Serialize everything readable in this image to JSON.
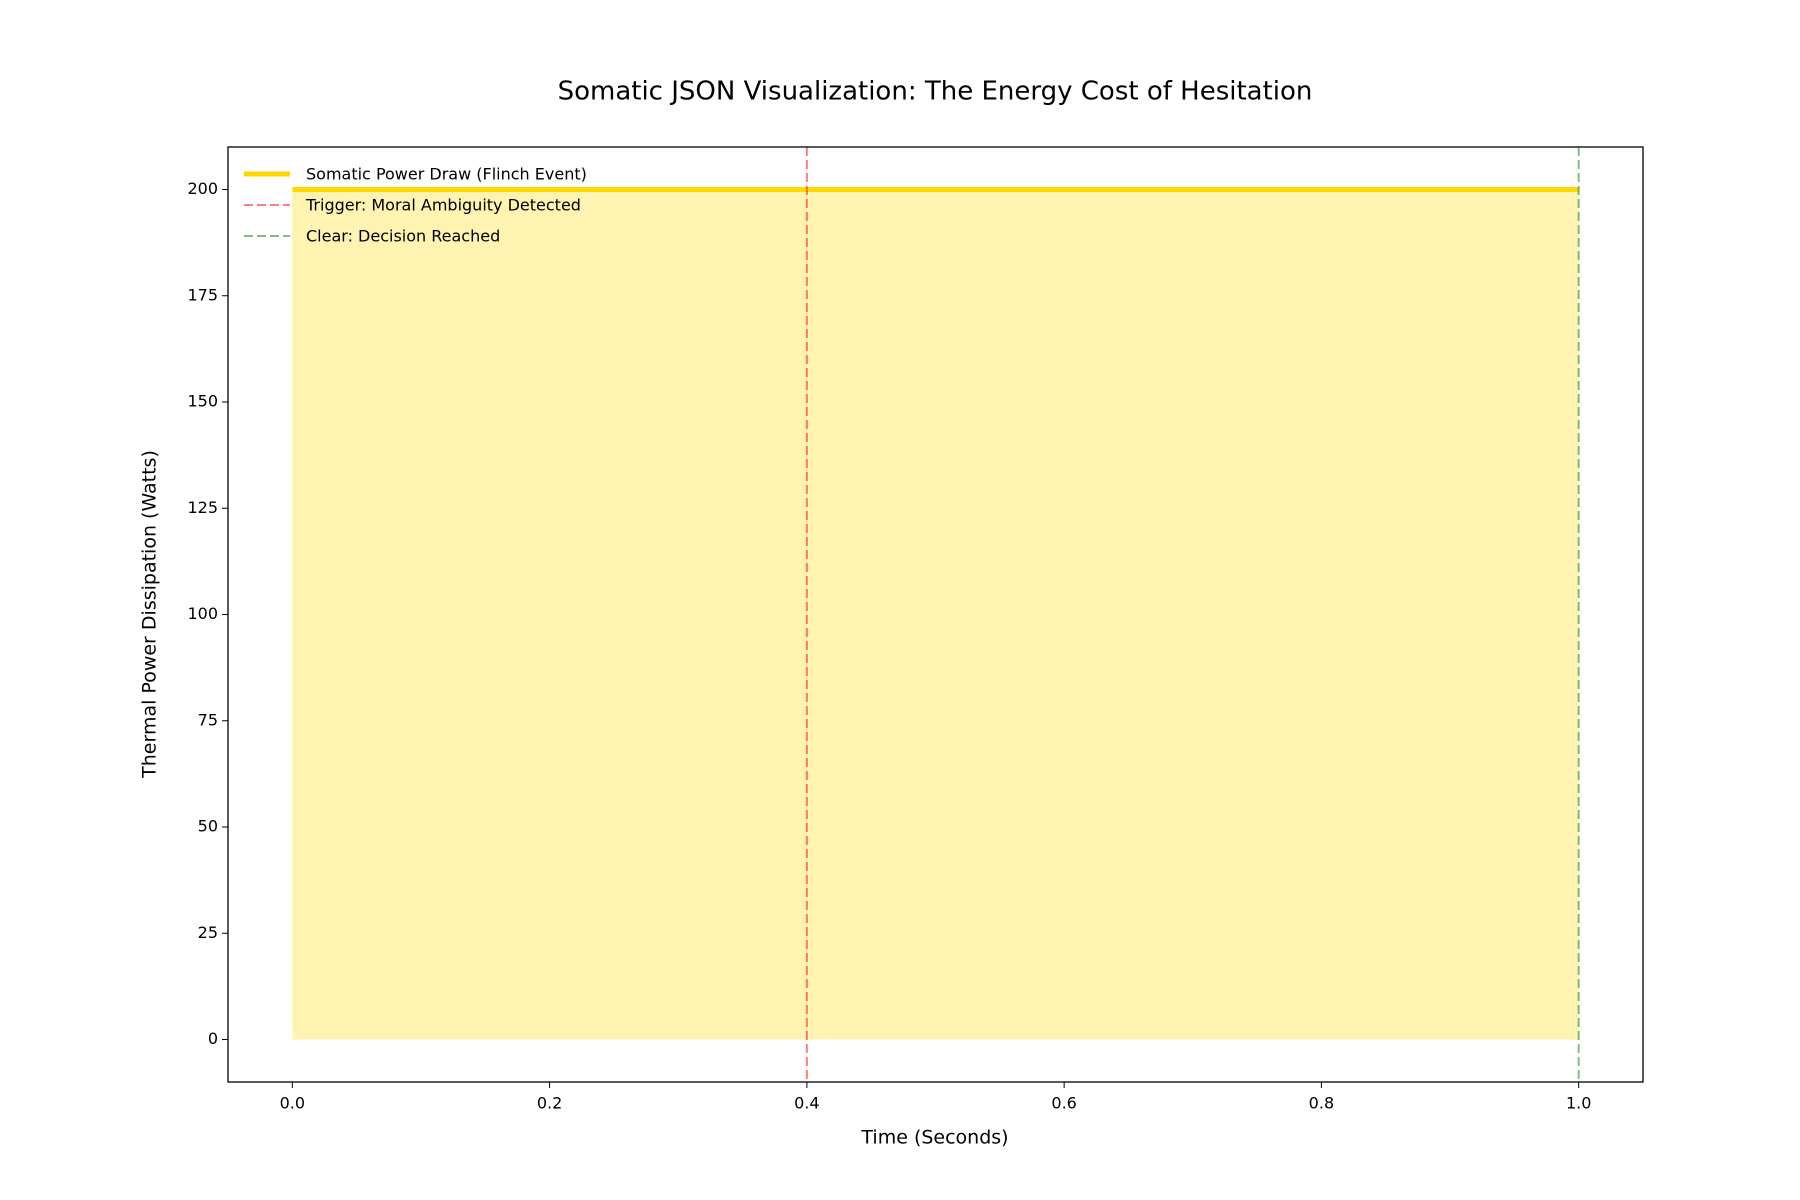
{
  "chart_data": {
    "type": "line",
    "title": "Somatic JSON Visualization: The Energy Cost of Hesitation",
    "xlabel": "Time (Seconds)",
    "ylabel": "Thermal Power Dissipation (Watts)",
    "x": [
      0,
      1
    ],
    "series": [
      {
        "name": "Somatic Power Draw (Flinch Event)",
        "color": "#ffd700",
        "values": [
          200,
          200
        ],
        "fill": true
      }
    ],
    "vlines": [
      {
        "name": "Trigger: Moral Ambiguity Detected",
        "color": "#ff0000",
        "x": 0.4
      },
      {
        "name": "Clear: Decision Reached",
        "color": "#008000",
        "x": 1
      }
    ],
    "xlim": [
      -0.05,
      1.05
    ],
    "ylim": [
      -10,
      210
    ],
    "xticks": [
      {
        "value": 0,
        "label": "0.0"
      },
      {
        "value": 0.2,
        "label": "0.2"
      },
      {
        "value": 0.4,
        "label": "0.4"
      },
      {
        "value": 0.6,
        "label": "0.6"
      },
      {
        "value": 0.8,
        "label": "0.8"
      },
      {
        "value": 1,
        "label": "1.0"
      }
    ],
    "yticks": [
      0,
      25,
      50,
      75,
      100,
      125,
      150,
      175,
      200
    ],
    "grid": false,
    "legend": "upper left"
  }
}
